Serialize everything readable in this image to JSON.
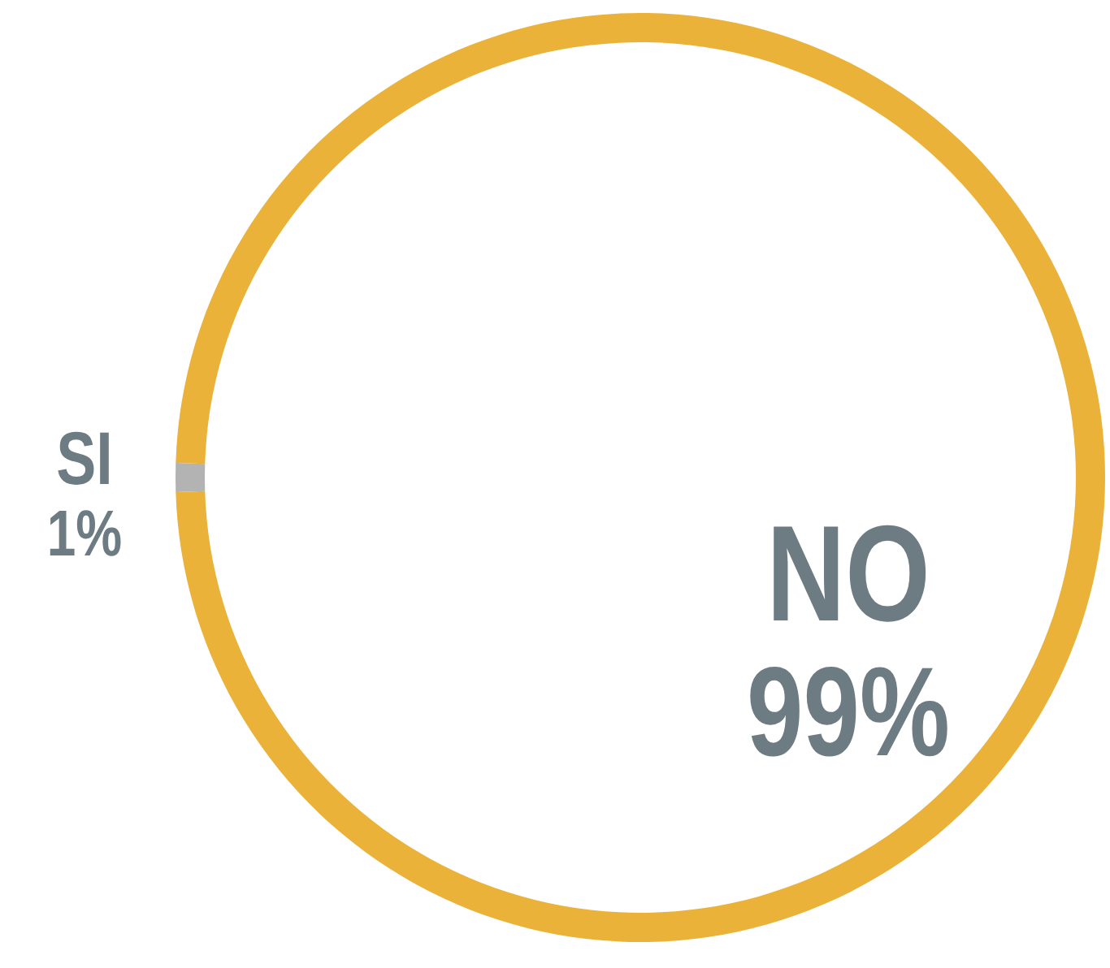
{
  "chart_data": {
    "type": "donut",
    "categories": [
      "SI",
      "NO"
    ],
    "values": [
      1,
      99
    ],
    "colors": [
      "#b3b3b3",
      "#ebb23a"
    ],
    "value_labels": [
      "1%",
      "99%"
    ],
    "legend": false
  }
}
